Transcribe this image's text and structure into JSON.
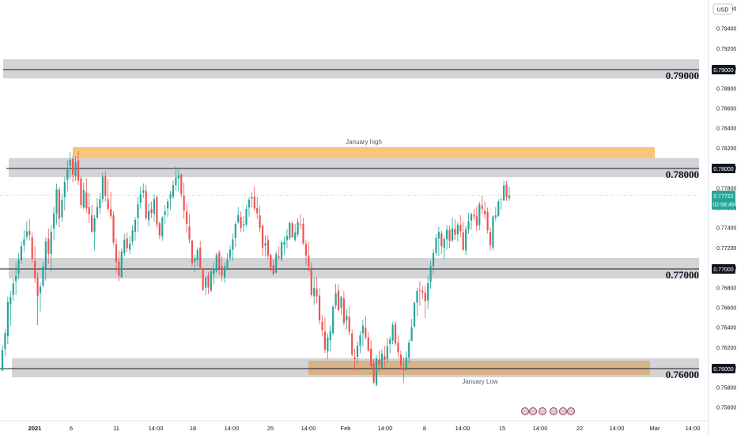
{
  "currency_badge": "USD",
  "price_axis_ticks": [
    "0.79600",
    "0.79400",
    "0.79200",
    "0.79000",
    "0.78800",
    "0.78600",
    "0.78400",
    "0.78200",
    "0.78000",
    "0.77800",
    "0.77600",
    "0.77400",
    "0.77200",
    "0.77000",
    "0.76800",
    "0.76600",
    "0.76400",
    "0.76200",
    "0.76000",
    "0.75800",
    "0.75600"
  ],
  "time_axis_ticks": [
    "2021",
    "6",
    "11",
    "14:00",
    "18",
    "14:00",
    "25",
    "14:00",
    "Feb",
    "14:00",
    "8",
    "14:00",
    "15",
    "14:00",
    "22",
    "14:00",
    "Mar",
    "14:00"
  ],
  "current_price": "0.77722",
  "countdown": "02:58:49",
  "annotations": {
    "january_high": "January high",
    "january_low": "January Low"
  },
  "levels": [
    {
      "price": 0.79,
      "label": "0.79000",
      "axis_tag": "0.79000"
    },
    {
      "price": 0.78,
      "label": "0.78000",
      "axis_tag": "0.78000"
    },
    {
      "price": 0.77,
      "label": "0.77000",
      "axis_tag": "0.77000"
    },
    {
      "price": 0.76,
      "label": "0.76000",
      "axis_tag": "0.76000"
    }
  ],
  "colors": {
    "bull": "#26a69a",
    "bear": "#ef5350",
    "zone_grey": "#d5d5d8",
    "january_high_zone": "#f9c57a",
    "january_low_zone": "#dcb27e",
    "axis_tag_bg": "#131722",
    "current_price_bg": "#26a69a"
  },
  "chart_data": {
    "type": "candlestick",
    "instrument_currency": "USD",
    "x_range": [
      "2021-01-01",
      "2021-03-01"
    ],
    "y_range": [
      0.7555,
      0.7975
    ],
    "horizontal_levels": [
      0.79,
      0.78,
      0.77,
      0.76
    ],
    "zones": [
      {
        "name": "January high",
        "y": [
          0.7811,
          0.7821
        ]
      },
      {
        "name": "January Low",
        "y": [
          0.7596,
          0.761
        ]
      }
    ],
    "candles_ohlc": [
      [
        0.75968,
        0.76228,
        0.75964,
        0.76173
      ],
      [
        0.76186,
        0.76388,
        0.76115,
        0.76345
      ],
      [
        0.76311,
        0.7671,
        0.76235,
        0.76656
      ],
      [
        0.76634,
        0.76766,
        0.76416,
        0.76707
      ],
      [
        0.76728,
        0.76893,
        0.76662,
        0.76841
      ],
      [
        0.76867,
        0.77048,
        0.76729,
        0.76917
      ],
      [
        0.76943,
        0.77143,
        0.76884,
        0.77077
      ],
      [
        0.77076,
        0.77265,
        0.77039,
        0.77217
      ],
      [
        0.77225,
        0.77379,
        0.77153,
        0.77286
      ],
      [
        0.77314,
        0.77464,
        0.7728,
        0.77367
      ],
      [
        0.77368,
        0.77487,
        0.77271,
        0.77332
      ],
      [
        0.77305,
        0.77357,
        0.77055,
        0.7709
      ],
      [
        0.77066,
        0.77215,
        0.76847,
        0.76898
      ],
      [
        0.76904,
        0.76956,
        0.76425,
        0.76718
      ],
      [
        0.76747,
        0.76857,
        0.76563,
        0.76809
      ],
      [
        0.76822,
        0.77056,
        0.76802,
        0.77014
      ],
      [
        0.76991,
        0.77307,
        0.76873,
        0.77265
      ],
      [
        0.77294,
        0.77396,
        0.77042,
        0.77141
      ],
      [
        0.77139,
        0.77424,
        0.76963,
        0.77363
      ],
      [
        0.77395,
        0.77612,
        0.77273,
        0.77546
      ],
      [
        0.77542,
        0.77846,
        0.77431,
        0.77792
      ],
      [
        0.77784,
        0.77812,
        0.77409,
        0.77493
      ],
      [
        0.77509,
        0.77741,
        0.77458,
        0.7768
      ],
      [
        0.77711,
        0.77915,
        0.77575,
        0.77862
      ],
      [
        0.77882,
        0.78082,
        0.77768,
        0.77986
      ],
      [
        0.78019,
        0.78163,
        0.7789,
        0.78082
      ],
      [
        0.78093,
        0.78126,
        0.77857,
        0.77935
      ],
      [
        0.77924,
        0.78119,
        0.77871,
        0.78058
      ],
      [
        0.78077,
        0.78171,
        0.77829,
        0.77876
      ],
      [
        0.77895,
        0.77914,
        0.77597,
        0.77632
      ],
      [
        0.77604,
        0.77857,
        0.77589,
        0.77781
      ],
      [
        0.77755,
        0.779,
        0.77553,
        0.77597
      ],
      [
        0.77608,
        0.77753,
        0.7745,
        0.77536
      ],
      [
        0.77528,
        0.77633,
        0.77351,
        0.77363
      ],
      [
        0.77363,
        0.7753,
        0.77175,
        0.77499
      ],
      [
        0.775,
        0.77704,
        0.77498,
        0.77611
      ],
      [
        0.77598,
        0.77752,
        0.77542,
        0.77687
      ],
      [
        0.7769,
        0.77958,
        0.77655,
        0.77915
      ],
      [
        0.77917,
        0.7797,
        0.77665,
        0.77723
      ],
      [
        0.77693,
        0.77894,
        0.77563,
        0.77592
      ],
      [
        0.77591,
        0.77763,
        0.77487,
        0.77519
      ],
      [
        0.77525,
        0.77564,
        0.77226,
        0.77256
      ],
      [
        0.77236,
        0.77296,
        0.76947,
        0.7706
      ],
      [
        0.77062,
        0.77175,
        0.76865,
        0.76918
      ],
      [
        0.76905,
        0.77194,
        0.76902,
        0.77162
      ],
      [
        0.77146,
        0.77342,
        0.77114,
        0.77279
      ],
      [
        0.77296,
        0.77356,
        0.77158,
        0.77196
      ],
      [
        0.77182,
        0.77321,
        0.77134,
        0.77242
      ],
      [
        0.77264,
        0.77426,
        0.77225,
        0.77377
      ],
      [
        0.77362,
        0.77511,
        0.77272,
        0.77481
      ],
      [
        0.77499,
        0.77713,
        0.77359,
        0.77639
      ],
      [
        0.77654,
        0.77815,
        0.77593,
        0.77737
      ],
      [
        0.77752,
        0.77849,
        0.77701,
        0.77779
      ],
      [
        0.77771,
        0.77834,
        0.77478,
        0.77499
      ],
      [
        0.77479,
        0.77649,
        0.77413,
        0.77568
      ],
      [
        0.77591,
        0.77666,
        0.77502,
        0.77549
      ],
      [
        0.77544,
        0.7774,
        0.77459,
        0.7769
      ],
      [
        0.7771,
        0.7773,
        0.774,
        0.77435
      ],
      [
        0.77448,
        0.77462,
        0.77289,
        0.77326
      ],
      [
        0.77314,
        0.77522,
        0.77272,
        0.77503
      ],
      [
        0.7753,
        0.7763,
        0.77442,
        0.77568
      ],
      [
        0.77597,
        0.77695,
        0.77509,
        0.77664
      ],
      [
        0.77694,
        0.77773,
        0.77581,
        0.7774
      ],
      [
        0.77713,
        0.77878,
        0.77689,
        0.77829
      ],
      [
        0.7783,
        0.78019,
        0.77775,
        0.77906
      ],
      [
        0.77896,
        0.78006,
        0.77766,
        0.77927
      ],
      [
        0.77934,
        0.77952,
        0.77707,
        0.77739
      ],
      [
        0.77724,
        0.77858,
        0.7749,
        0.77572
      ],
      [
        0.77565,
        0.77649,
        0.77355,
        0.77441
      ],
      [
        0.77414,
        0.77542,
        0.77249,
        0.77285
      ],
      [
        0.77274,
        0.7728,
        0.77012,
        0.77044
      ],
      [
        0.77062,
        0.7713,
        0.76955,
        0.77099
      ],
      [
        0.77078,
        0.77207,
        0.77015,
        0.77179
      ],
      [
        0.77202,
        0.7727,
        0.76985,
        0.76997
      ],
      [
        0.76995,
        0.77,
        0.76766,
        0.7678
      ],
      [
        0.768,
        0.76915,
        0.76724,
        0.76897
      ],
      [
        0.76922,
        0.76958,
        0.76739,
        0.76802
      ],
      [
        0.76773,
        0.76979,
        0.76756,
        0.76964
      ],
      [
        0.76938,
        0.77053,
        0.76835,
        0.76994
      ],
      [
        0.76965,
        0.77152,
        0.76949,
        0.7713
      ],
      [
        0.77156,
        0.7718,
        0.76934,
        0.76992
      ],
      [
        0.77019,
        0.77117,
        0.76865,
        0.76923
      ],
      [
        0.76903,
        0.77056,
        0.76846,
        0.77015
      ],
      [
        0.76999,
        0.77149,
        0.76974,
        0.77078
      ],
      [
        0.77102,
        0.77227,
        0.77072,
        0.77182
      ],
      [
        0.77182,
        0.77341,
        0.7707,
        0.77286
      ],
      [
        0.773,
        0.77465,
        0.7721,
        0.77441
      ],
      [
        0.77458,
        0.77612,
        0.77442,
        0.7753
      ],
      [
        0.7751,
        0.77563,
        0.77363,
        0.77401
      ],
      [
        0.77424,
        0.77522,
        0.77358,
        0.77438
      ],
      [
        0.77432,
        0.77624,
        0.77413,
        0.7759
      ],
      [
        0.77607,
        0.77709,
        0.77511,
        0.77682
      ],
      [
        0.77696,
        0.77757,
        0.77604,
        0.77711
      ],
      [
        0.77714,
        0.77817,
        0.77571,
        0.77595
      ],
      [
        0.77599,
        0.77712,
        0.77488,
        0.77547
      ],
      [
        0.77526,
        0.77622,
        0.77355,
        0.77401
      ],
      [
        0.77421,
        0.77431,
        0.77119,
        0.77203
      ],
      [
        0.77222,
        0.77325,
        0.77112,
        0.77247
      ],
      [
        0.77277,
        0.77327,
        0.77085,
        0.77125
      ],
      [
        0.77131,
        0.77143,
        0.76965,
        0.77004
      ],
      [
        0.77028,
        0.77084,
        0.76926,
        0.7694
      ],
      [
        0.76952,
        0.77167,
        0.76947,
        0.77138
      ],
      [
        0.77113,
        0.77214,
        0.7708,
        0.77102
      ],
      [
        0.7709,
        0.77278,
        0.77063,
        0.77256
      ],
      [
        0.77228,
        0.77314,
        0.77133,
        0.7726
      ],
      [
        0.77278,
        0.77391,
        0.77197,
        0.77321
      ],
      [
        0.77295,
        0.77472,
        0.77282,
        0.77451
      ],
      [
        0.77447,
        0.77468,
        0.77298,
        0.77307
      ],
      [
        0.77281,
        0.77436,
        0.77264,
        0.77355
      ],
      [
        0.77333,
        0.77499,
        0.77305,
        0.77459
      ],
      [
        0.77441,
        0.77536,
        0.77386,
        0.77435
      ],
      [
        0.77442,
        0.77502,
        0.77227,
        0.77247
      ],
      [
        0.7724,
        0.77275,
        0.77028,
        0.77123
      ],
      [
        0.77121,
        0.77259,
        0.76964,
        0.77015
      ],
      [
        0.77002,
        0.77057,
        0.76711,
        0.76727
      ],
      [
        0.76714,
        0.76902,
        0.76628,
        0.768
      ],
      [
        0.76791,
        0.76911,
        0.76647,
        0.76714
      ],
      [
        0.76723,
        0.76798,
        0.76435,
        0.76472
      ],
      [
        0.7646,
        0.76528,
        0.76312,
        0.76376
      ],
      [
        0.76359,
        0.76503,
        0.76144,
        0.76181
      ],
      [
        0.76162,
        0.76341,
        0.7608,
        0.763
      ],
      [
        0.76274,
        0.76424,
        0.76162,
        0.76366
      ],
      [
        0.76342,
        0.76626,
        0.76324,
        0.76612
      ],
      [
        0.76621,
        0.76841,
        0.76588,
        0.76747
      ],
      [
        0.76771,
        0.76834,
        0.76568,
        0.76574
      ],
      [
        0.76598,
        0.76717,
        0.76525,
        0.76708
      ],
      [
        0.76692,
        0.76766,
        0.76422,
        0.76447
      ],
      [
        0.76472,
        0.76587,
        0.7638,
        0.76519
      ],
      [
        0.76508,
        0.76616,
        0.76325,
        0.76359
      ],
      [
        0.76341,
        0.7638,
        0.76112,
        0.7613
      ],
      [
        0.76102,
        0.76186,
        0.75964,
        0.76083
      ],
      [
        0.76107,
        0.76267,
        0.76035,
        0.76219
      ],
      [
        0.76214,
        0.76367,
        0.76142,
        0.76323
      ],
      [
        0.76343,
        0.76478,
        0.76211,
        0.76419
      ],
      [
        0.76399,
        0.7652,
        0.76278,
        0.76303
      ],
      [
        0.76303,
        0.76357,
        0.76157,
        0.76167
      ],
      [
        0.76191,
        0.76273,
        0.7598,
        0.76014
      ],
      [
        0.76037,
        0.76088,
        0.75834,
        0.7585
      ],
      [
        0.75826,
        0.76126,
        0.75809,
        0.7609
      ],
      [
        0.76077,
        0.76171,
        0.75956,
        0.76024
      ],
      [
        0.76,
        0.76181,
        0.75977,
        0.76139
      ],
      [
        0.76115,
        0.76217,
        0.76003,
        0.76076
      ],
      [
        0.76082,
        0.76299,
        0.76042,
        0.76213
      ],
      [
        0.76238,
        0.76308,
        0.76144,
        0.76283
      ],
      [
        0.76268,
        0.76454,
        0.76233,
        0.76426
      ],
      [
        0.76434,
        0.76464,
        0.76221,
        0.76241
      ],
      [
        0.7625,
        0.76322,
        0.76103,
        0.76153
      ],
      [
        0.76127,
        0.7617,
        0.75976,
        0.7602
      ],
      [
        0.75997,
        0.76099,
        0.75849,
        0.75975
      ],
      [
        0.75998,
        0.76161,
        0.75965,
        0.76101
      ],
      [
        0.76097,
        0.76279,
        0.76042,
        0.76249
      ],
      [
        0.76266,
        0.76488,
        0.76265,
        0.76403
      ],
      [
        0.76409,
        0.76663,
        0.76405,
        0.76647
      ],
      [
        0.7665,
        0.76799,
        0.76516,
        0.76768
      ],
      [
        0.76776,
        0.76869,
        0.76618,
        0.76767
      ],
      [
        0.7677,
        0.76816,
        0.76692,
        0.76749
      ],
      [
        0.76751,
        0.76818,
        0.76496,
        0.76667
      ],
      [
        0.76672,
        0.76918,
        0.76589,
        0.76846
      ],
      [
        0.76857,
        0.7707,
        0.76789,
        0.77017
      ],
      [
        0.77015,
        0.77186,
        0.76935,
        0.77152
      ],
      [
        0.77149,
        0.77338,
        0.7712,
        0.77298
      ],
      [
        0.77294,
        0.77411,
        0.77117,
        0.77359
      ],
      [
        0.77345,
        0.7737,
        0.77138,
        0.77217
      ],
      [
        0.77199,
        0.77316,
        0.77085,
        0.7729
      ],
      [
        0.77287,
        0.77429,
        0.77186,
        0.77383
      ],
      [
        0.77381,
        0.7742,
        0.77194,
        0.77268
      ],
      [
        0.77274,
        0.77502,
        0.77258,
        0.77397
      ],
      [
        0.77393,
        0.77488,
        0.77283,
        0.77333
      ],
      [
        0.77335,
        0.7746,
        0.77261,
        0.77433
      ],
      [
        0.7743,
        0.77528,
        0.77304,
        0.77366
      ],
      [
        0.77356,
        0.77459,
        0.77171,
        0.77181
      ],
      [
        0.77174,
        0.7742,
        0.77126,
        0.77388
      ],
      [
        0.77383,
        0.77552,
        0.77339,
        0.77469
      ],
      [
        0.77474,
        0.77556,
        0.77383,
        0.77539
      ],
      [
        0.77531,
        0.7759,
        0.77481,
        0.77515
      ],
      [
        0.77519,
        0.77617,
        0.77369,
        0.77425
      ],
      [
        0.77428,
        0.77663,
        0.77379,
        0.7764
      ],
      [
        0.77626,
        0.77724,
        0.77538,
        0.77592
      ],
      [
        0.77575,
        0.77666,
        0.77491,
        0.77538
      ],
      [
        0.77562,
        0.77604,
        0.77345,
        0.77376
      ],
      [
        0.7736,
        0.77407,
        0.77172,
        0.77226
      ],
      [
        0.77205,
        0.77526,
        0.77178,
        0.77515
      ],
      [
        0.77503,
        0.77608,
        0.7747,
        0.77527
      ],
      [
        0.77522,
        0.77688,
        0.77509,
        0.77665
      ],
      [
        0.77683,
        0.77705,
        0.77577,
        0.77689
      ],
      [
        0.77676,
        0.77873,
        0.77672,
        0.77825
      ],
      [
        0.77836,
        0.77871,
        0.7767,
        0.77712
      ],
      [
        0.77699,
        0.77815,
        0.7767,
        0.77722
      ]
    ]
  }
}
